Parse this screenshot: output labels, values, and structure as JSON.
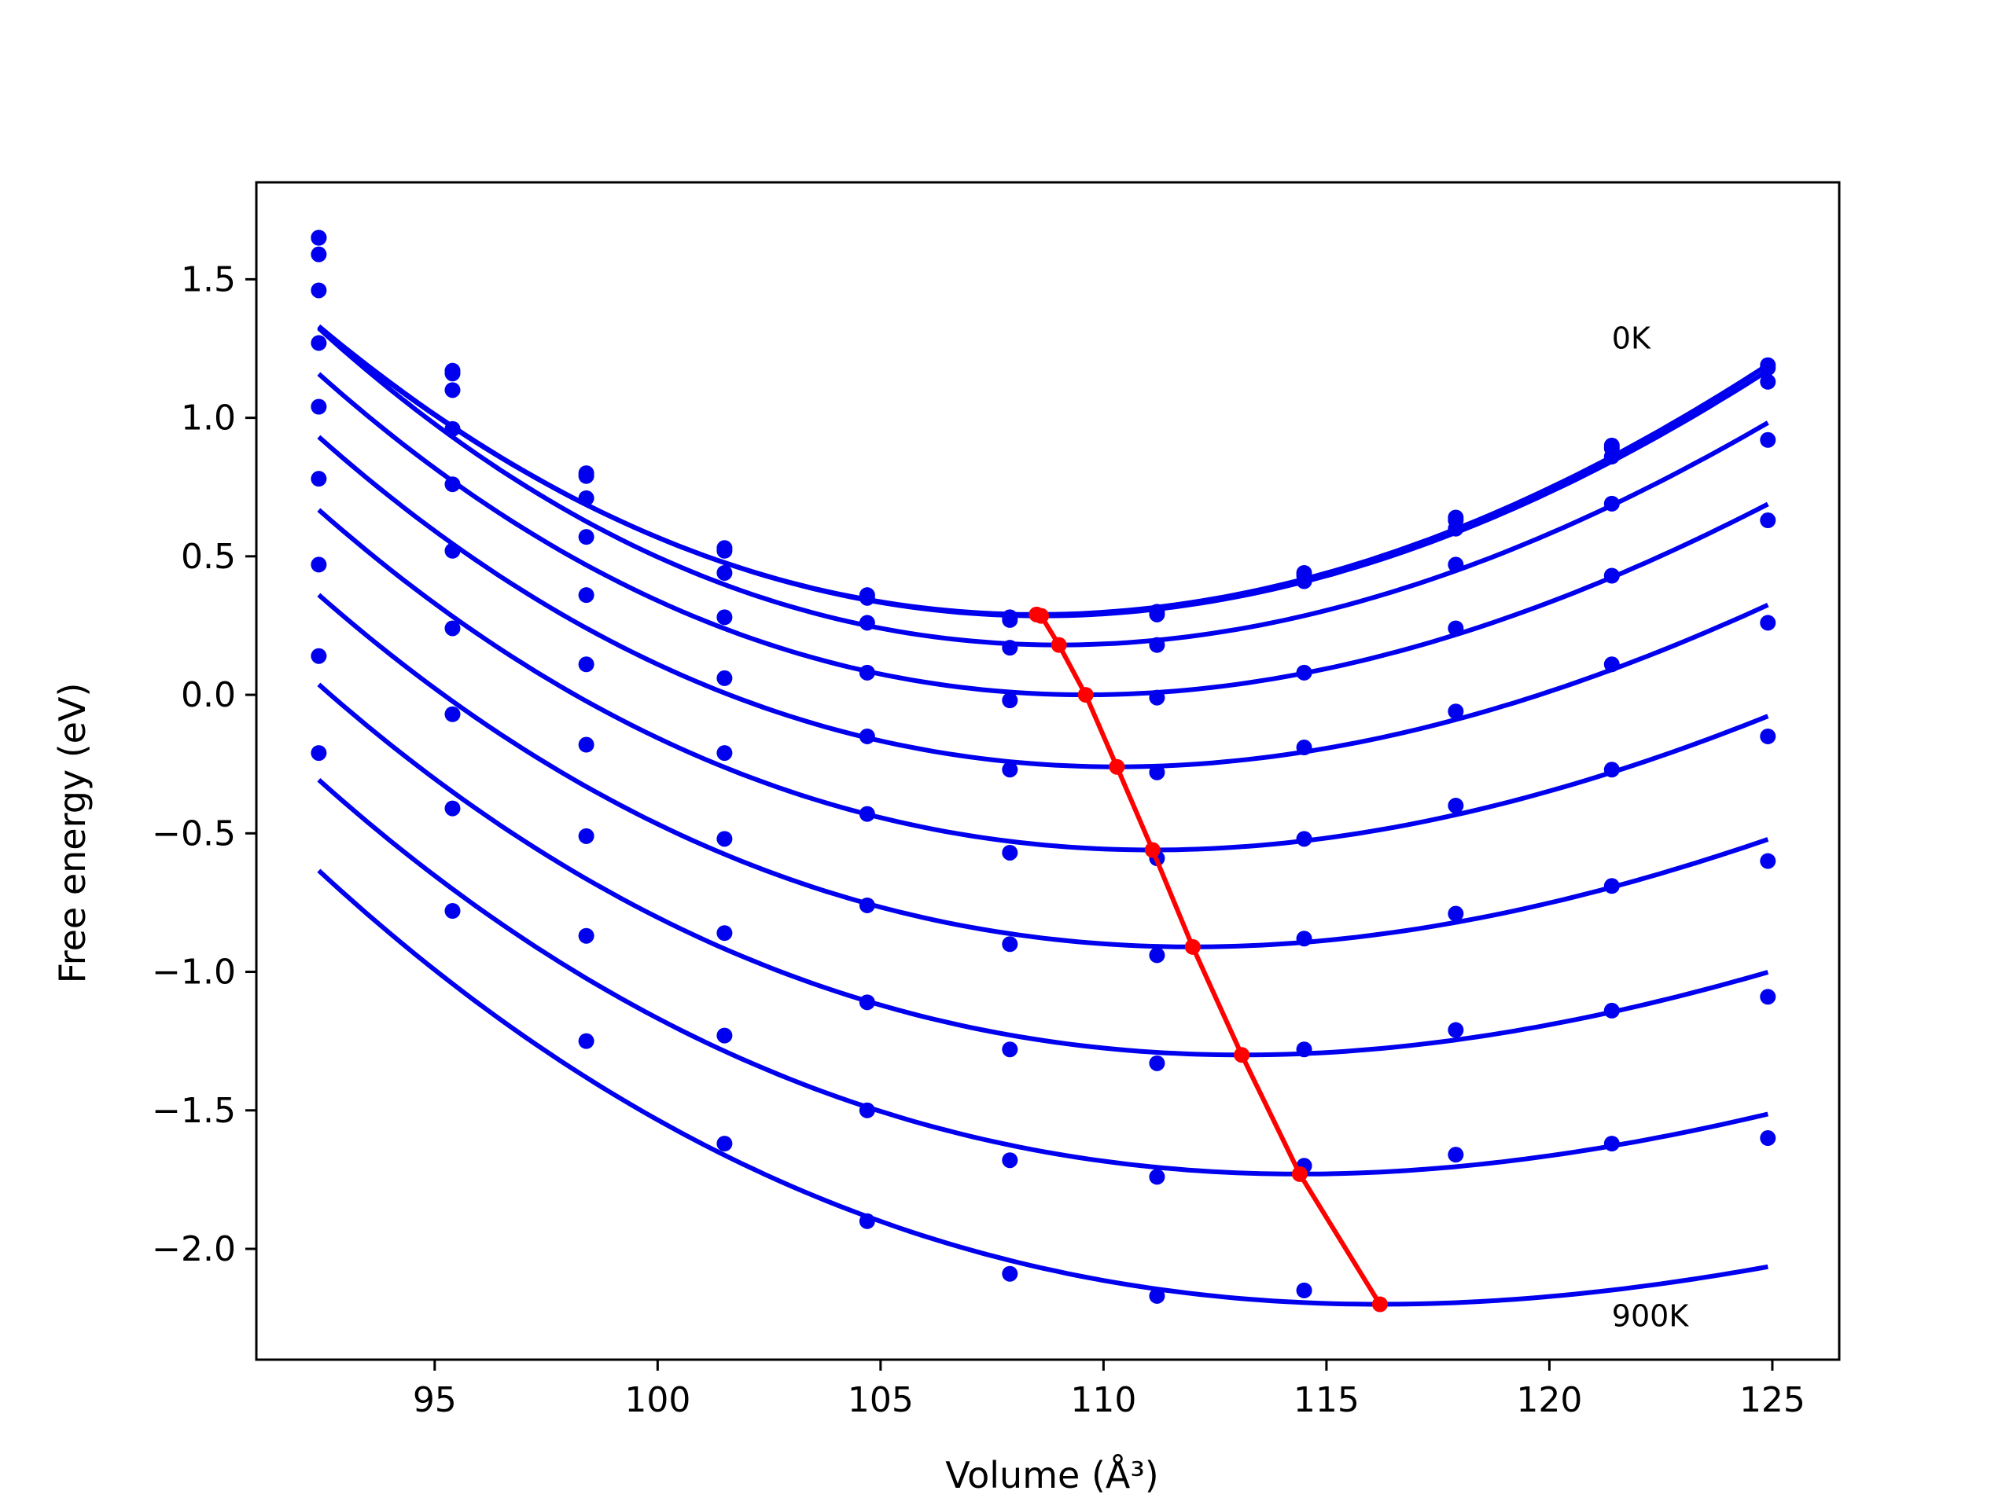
{
  "chart_data": {
    "type": "line",
    "xlabel": "Volume (Å³)",
    "ylabel": "Free energy (eV)",
    "xlim": [
      91,
      126.5
    ],
    "ylim": [
      -2.4,
      1.85
    ],
    "xticks": [
      95,
      100,
      105,
      110,
      115,
      120,
      125
    ],
    "yticks": [
      1.5,
      1.0,
      0.5,
      0.0,
      -0.5,
      -1.0,
      -1.5,
      -2.0
    ],
    "ytick_labels": [
      "1.5",
      "1.0",
      "0.5",
      "0.0",
      "−0.5",
      "−1.0",
      "−1.5",
      "−2.0"
    ],
    "grid": false,
    "colors": {
      "fit": "#0000ee",
      "points": "#0000ee",
      "minima": "#ff0000",
      "frame": "#000000"
    },
    "annotations": [
      {
        "text": "0K",
        "x": 121.4,
        "y": 1.25
      },
      {
        "text": "900K",
        "x": 121.4,
        "y": -2.28
      }
    ],
    "x": [
      92.4,
      95.4,
      98.4,
      101.5,
      104.7,
      107.9,
      111.2,
      114.5,
      117.9,
      121.4,
      124.9
    ],
    "series": [
      {
        "values": [
          1.65,
          1.17,
          0.8,
          0.53,
          0.36,
          0.28,
          0.3,
          0.44,
          0.64,
          0.9,
          1.19
        ],
        "fit": {
          "a": 0.00368,
          "v0": 108.5,
          "f0": 0.29,
          "k": 2e-05
        }
      },
      {
        "values": [
          1.65,
          1.16,
          0.79,
          0.52,
          0.35,
          0.27,
          0.29,
          0.43,
          0.63,
          0.89,
          1.18
        ],
        "fit": {
          "a": 0.00366,
          "v0": 108.6,
          "f0": 0.285,
          "k": 2e-05
        }
      },
      {
        "values": [
          1.59,
          1.1,
          0.71,
          0.44,
          0.26,
          0.17,
          0.18,
          0.41,
          0.6,
          0.86,
          1.13
        ],
        "fit": {
          "a": 0.00365,
          "v0": 109.0,
          "f0": 0.18,
          "k": 3e-05
        }
      },
      {
        "values": [
          1.46,
          0.96,
          0.57,
          0.28,
          0.08,
          -0.02,
          -0.01,
          0.08,
          0.47,
          0.69,
          0.92
        ],
        "fit": {
          "a": 0.0034,
          "v0": 109.6,
          "f0": 0.0,
          "k": 3e-05
        }
      },
      {
        "values": [
          1.27,
          0.76,
          0.36,
          0.06,
          -0.15,
          -0.27,
          -0.28,
          -0.19,
          0.24,
          0.43,
          0.63
        ],
        "fit": {
          "a": 0.00318,
          "v0": 110.3,
          "f0": -0.26,
          "k": 3e-05
        }
      },
      {
        "values": [
          1.04,
          0.52,
          0.11,
          -0.21,
          -0.43,
          -0.57,
          -0.59,
          -0.52,
          -0.06,
          0.11,
          0.26
        ],
        "fit": {
          "a": 0.00295,
          "v0": 111.1,
          "f0": -0.56,
          "k": 3e-05
        }
      },
      {
        "values": [
          0.78,
          0.24,
          -0.18,
          -0.52,
          -0.76,
          -0.9,
          -0.94,
          -0.88,
          -0.4,
          -0.27,
          -0.15
        ],
        "fit": {
          "a": 0.00272,
          "v0": 112.0,
          "f0": -0.91,
          "k": 3e-05
        }
      },
      {
        "values": [
          0.47,
          -0.07,
          -0.51,
          -0.86,
          -1.11,
          -1.28,
          -1.33,
          -1.28,
          -0.79,
          -0.69,
          -0.6
        ],
        "fit": {
          "a": 0.0025,
          "v0": 113.1,
          "f0": -1.3,
          "k": 3e-05
        }
      },
      {
        "values": [
          0.14,
          -0.41,
          -0.87,
          -1.23,
          -1.5,
          -1.68,
          -1.74,
          -1.7,
          -1.21,
          -1.14,
          -1.09
        ],
        "fit": {
          "a": 0.00228,
          "v0": 114.4,
          "f0": -1.73,
          "k": 3e-05
        }
      },
      {
        "values": [
          -0.21,
          -0.78,
          -1.25,
          -1.62,
          -1.9,
          -2.09,
          -2.17,
          -2.15,
          -1.66,
          -1.62,
          -1.6
        ],
        "fit": {
          "a": 0.00205,
          "v0": 116.2,
          "f0": -2.2,
          "k": 3e-05
        }
      }
    ],
    "minima": {
      "x": [
        108.5,
        108.6,
        109.0,
        109.6,
        110.3,
        111.1,
        112.0,
        113.1,
        114.4,
        116.2
      ],
      "y": [
        0.29,
        0.285,
        0.18,
        0.0,
        -0.26,
        -0.56,
        -0.91,
        -1.3,
        -1.73,
        -2.2
      ]
    }
  }
}
